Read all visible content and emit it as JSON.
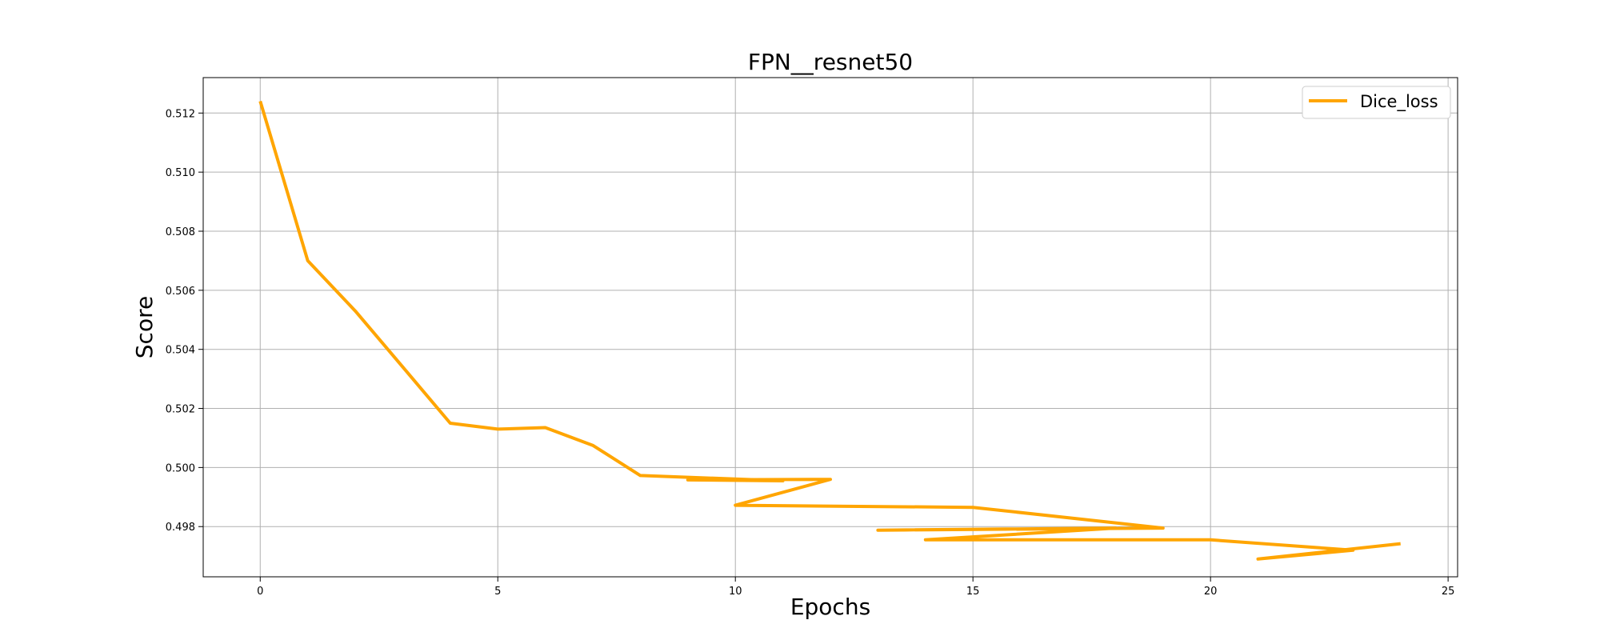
{
  "chart_data": {
    "type": "line",
    "title": "FPN__resnet50",
    "xlabel": "Epochs",
    "ylabel": "Score",
    "xlim": [
      -1.2,
      25.2
    ],
    "ylim": [
      0.4963,
      0.5132
    ],
    "xticks": [
      0,
      5,
      10,
      15,
      20,
      25
    ],
    "yticks": [
      0.498,
      0.5,
      0.502,
      0.504,
      0.506,
      0.508,
      0.51,
      0.512
    ],
    "grid": true,
    "legend_position": "top-right",
    "colors": {
      "series": "#FFA500",
      "grid": "#b0b0b0",
      "axes": "#000000"
    },
    "series": [
      {
        "name": "Dice_loss",
        "x": [
          0,
          1,
          2,
          3,
          4,
          5,
          6,
          7,
          8,
          11,
          9,
          12,
          10,
          15,
          19,
          13,
          18,
          14,
          20,
          23,
          21,
          24
        ],
        "y": [
          0.5124,
          0.507,
          0.5053,
          0.5034,
          0.5015,
          0.5013,
          0.50135,
          0.50075,
          0.49973,
          0.49955,
          0.49958,
          0.4996,
          0.49872,
          0.49865,
          0.49795,
          0.49788,
          0.49795,
          0.49755,
          0.49755,
          0.4972,
          0.4969,
          0.49742
        ]
      }
    ]
  }
}
